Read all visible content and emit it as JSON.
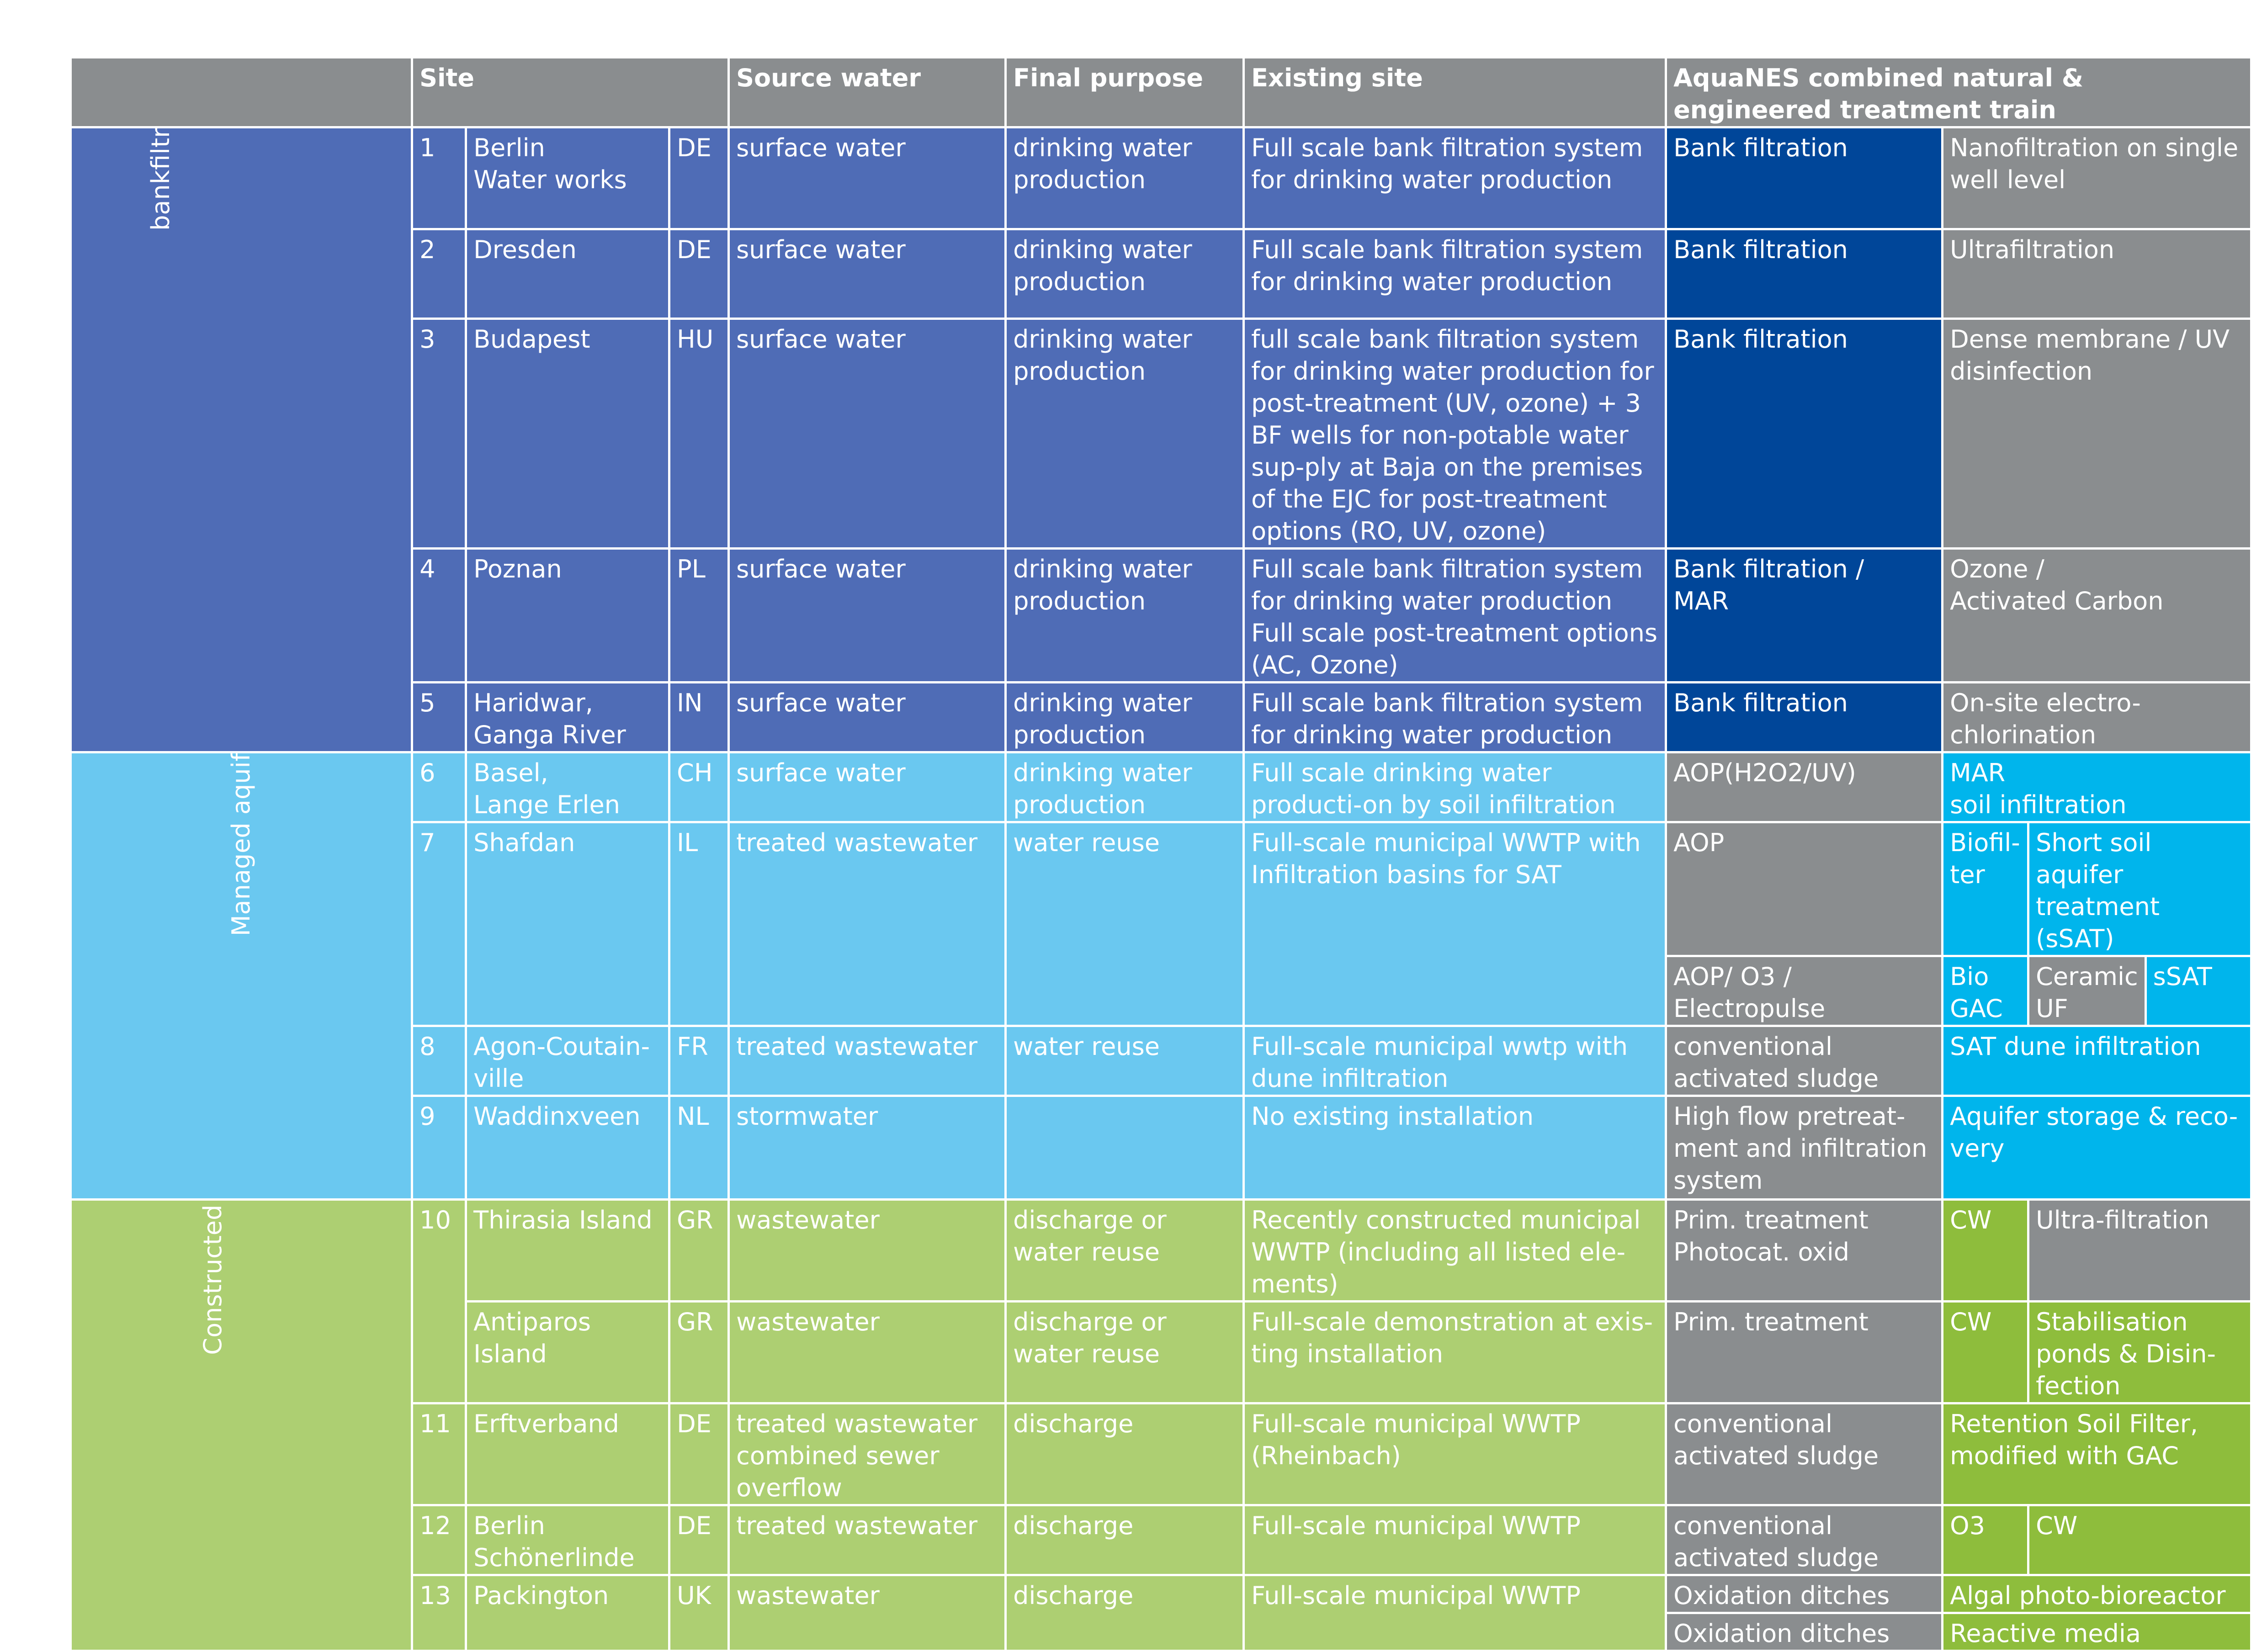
{
  "header": {
    "site": "Site",
    "source_water": "Source water",
    "final_purpose": "Final purpose",
    "existing_site": "Existing site",
    "train": "AquaNES combined natural & engineered treatment train"
  },
  "categories": {
    "bankfiltration": "bankfiltration",
    "mar": "Managed aquifer recharge",
    "cw": "Constructed wetlands"
  },
  "rows": {
    "r1": {
      "num": "1",
      "name": [
        "Berlin",
        "Water works"
      ],
      "cc": "DE",
      "src": "surface water",
      "purpose": "drinking water production",
      "existing": "Full scale bank filtration system for drinking water production",
      "t1": "Bank filtration",
      "t2": "Nanofiltration on single well level"
    },
    "r2": {
      "num": "2",
      "name": [
        "Dresden"
      ],
      "cc": "DE",
      "src": "surface water",
      "purpose": "drinking water production",
      "existing": "Full scale bank filtration system for drinking water production",
      "t1": "Bank filtration",
      "t2": "Ultrafiltration"
    },
    "r3": {
      "num": "3",
      "name": [
        "Budapest"
      ],
      "cc": "HU",
      "src": "surface water",
      "purpose": "drinking water production",
      "existing": "full scale bank filtration system for drinking water production for post-treatment (UV, ozone) + 3 BF wells for non-potable water sup-ply at Baja on the premises of the EJC for post-treatment options (RO, UV, ozone)",
      "t1": "Bank filtration",
      "t2": "Dense membrane / UV disinfection"
    },
    "r4": {
      "num": "4",
      "name": [
        "Poznan"
      ],
      "cc": "PL",
      "src": "surface water",
      "purpose": "drinking water production",
      "existing": [
        "Full scale bank filtration system for drinking water production",
        "Full scale post-treatment options (AC, Ozone)"
      ],
      "t1": [
        "Bank filtration /",
        "MAR"
      ],
      "t2": [
        "Ozone /",
        "Activated Carbon"
      ]
    },
    "r5": {
      "num": "5",
      "name": [
        "Haridwar,",
        "Ganga River"
      ],
      "cc": "IN",
      "src": "surface water",
      "purpose": "drinking water production",
      "existing": "Full scale bank filtration system for drinking water production",
      "t1": "Bank filtration",
      "t2": "On-site electro-chlorination"
    },
    "r6": {
      "num": "6",
      "name": [
        "Basel,",
        "Lange Erlen"
      ],
      "cc": "CH",
      "src": "surface water",
      "purpose": "drinking water production",
      "existing": "Full scale drinking water producti-on by soil infiltration",
      "t1": "AOP(H2O2/UV)",
      "t2": [
        "MAR",
        "soil infiltration"
      ]
    },
    "r7": {
      "num": "7",
      "name": [
        "Shafdan"
      ],
      "cc": "IL",
      "src": "treated wastewater",
      "purpose": "water reuse",
      "existing": "Full-scale municipal WWTP with Infiltration basins for SAT",
      "t1a": "AOP",
      "t2a": "Biofil-ter",
      "t3a": "Short soil aquifer treatment (sSAT)",
      "t1b": "AOP/ O3 / Electropulse",
      "t2b": "Bio GAC",
      "t3b": "Ceramic UF",
      "t4b": "sSAT"
    },
    "r8": {
      "num": "8",
      "name": [
        "Agon-Coutain-ville"
      ],
      "cc": "FR",
      "src": "treated wastewater",
      "purpose": "water reuse",
      "existing": "Full-scale municipal wwtp with dune infiltration",
      "t1": "conventional activated sludge",
      "t2": "SAT dune infiltration"
    },
    "r9": {
      "num": "9",
      "name": [
        "Waddinxveen"
      ],
      "cc": "NL",
      "src": "stormwater",
      "purpose": "",
      "existing": "No existing installation",
      "t1": "High flow pretreat-ment and infiltration system",
      "t2": "Aquifer storage & reco-very"
    },
    "r10": {
      "num": "10",
      "name": [
        "Thirasia Island"
      ],
      "cc": "GR",
      "src": "wastewater",
      "purpose": "discharge or water reuse",
      "existing": "Recently constructed municipal WWTP (including all listed ele-ments)",
      "t1": [
        "Prim. treatment",
        "Photocat. oxid"
      ],
      "t2": "CW",
      "t3": "Ultra-filtration"
    },
    "r10b": {
      "name": [
        "Antiparos",
        "Island"
      ],
      "cc": "GR",
      "src": "wastewater",
      "purpose": "discharge or water reuse",
      "existing": "Full-scale demonstration at exis-ting installation",
      "t1": "Prim. treatment",
      "t2": "CW",
      "t3": "Stabilisation ponds & Disin-fection"
    },
    "r11": {
      "num": "11",
      "name": [
        "Erftverband"
      ],
      "cc": "DE",
      "src": [
        "treated wastewater",
        "combined sewer overflow"
      ],
      "purpose": "discharge",
      "existing": [
        "Full-scale municipal WWTP",
        "(Rheinbach)"
      ],
      "t1": "conventional activated sludge",
      "t2": "Retention Soil Filter, modified with GAC"
    },
    "r12": {
      "num": "12",
      "name": [
        "Berlin",
        "Schönerlinde"
      ],
      "cc": "DE",
      "src": "treated wastewater",
      "purpose": "discharge",
      "existing": "Full-scale municipal WWTP",
      "t1": "conventional activated sludge",
      "t2": "O3",
      "t3": "CW"
    },
    "r13": {
      "num": "13",
      "name": [
        "Packington"
      ],
      "cc": "UK",
      "src": "wastewater",
      "purpose": "discharge",
      "existing": "Full-scale municipal WWTP",
      "t1a": "Oxidation ditches",
      "t2a": "Algal photo-bioreactor",
      "t1b": "Oxidation ditches",
      "t2b": "Reactive media"
    }
  },
  "colors": {
    "header_gray": "#8a8d8f",
    "bankfiltration": "#4f6cb6",
    "mar": "#6ac8f0",
    "constructed_wetlands": "#adcf72",
    "train_dark_blue": "#004699",
    "train_gray": "#8a8d8f",
    "train_bright_blue": "#00b5ec",
    "train_green": "#8ebd3c"
  }
}
